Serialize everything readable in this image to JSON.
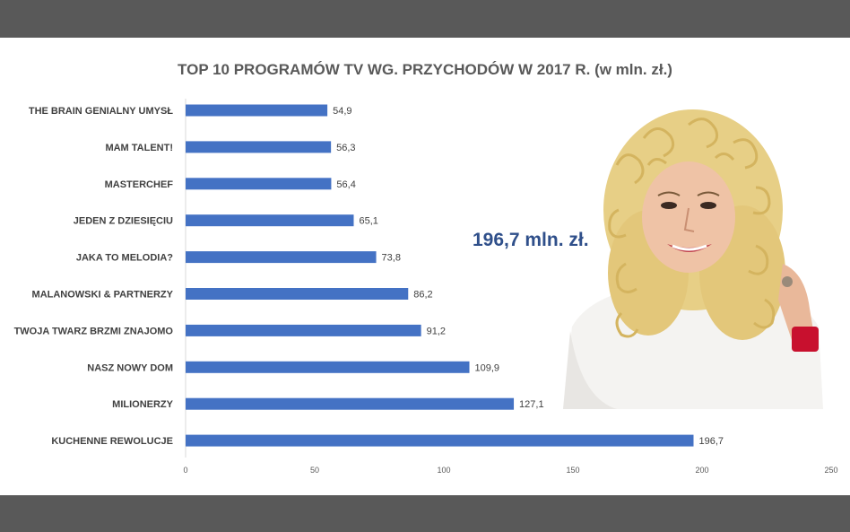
{
  "chart_data": {
    "type": "bar",
    "orientation": "horizontal",
    "title": "TOP 10 PROGRAMÓW TV WG. PRZYCHODÓW W 2017 R. (w mln. zł.)",
    "categories": [
      "THE BRAIN GENIALNY UMYSŁ",
      "MAM TALENT!",
      "MASTERCHEF",
      "JEDEN Z DZIESIĘCIU",
      "JAKA TO MELODIA?",
      "MALANOWSKI & PARTNERZY",
      "TWOJA TWARZ BRZMI ZNAJOMO",
      "NASZ NOWY DOM",
      "MILIONERZY",
      "KUCHENNE REWOLUCJE"
    ],
    "values": [
      54.9,
      56.3,
      56.4,
      65.1,
      73.8,
      86.2,
      91.2,
      109.9,
      127.1,
      196.7
    ],
    "value_labels": [
      "54,9",
      "56,3",
      "56,4",
      "65,1",
      "73,8",
      "86,2",
      "91,2",
      "109,9",
      "127,1",
      "196,7"
    ],
    "xlim": [
      0,
      250
    ],
    "xticks": [
      0,
      50,
      100,
      150,
      200,
      250
    ],
    "bar_color": "#4472c4",
    "grid": false,
    "legend": "none"
  },
  "highlight": {
    "text": "196,7 mln. zł.",
    "color": "#2f4f8a"
  }
}
